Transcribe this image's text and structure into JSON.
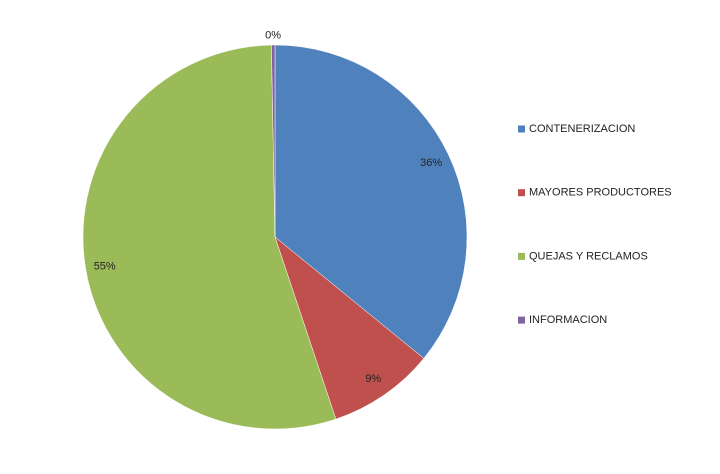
{
  "chart_data": {
    "type": "pie",
    "categories": [
      "CONTENERIZACION",
      "MAYORES PRODUCTORES",
      "QUEJAS Y RECLAMOS",
      "INFORMACION"
    ],
    "values": [
      36,
      9,
      55,
      0.3
    ],
    "value_labels": [
      "36%",
      "9%",
      "55%",
      "0%"
    ],
    "colors": [
      "#4f81bd",
      "#c0504d",
      "#9bbb59",
      "#8064a2"
    ],
    "legend": "right"
  }
}
